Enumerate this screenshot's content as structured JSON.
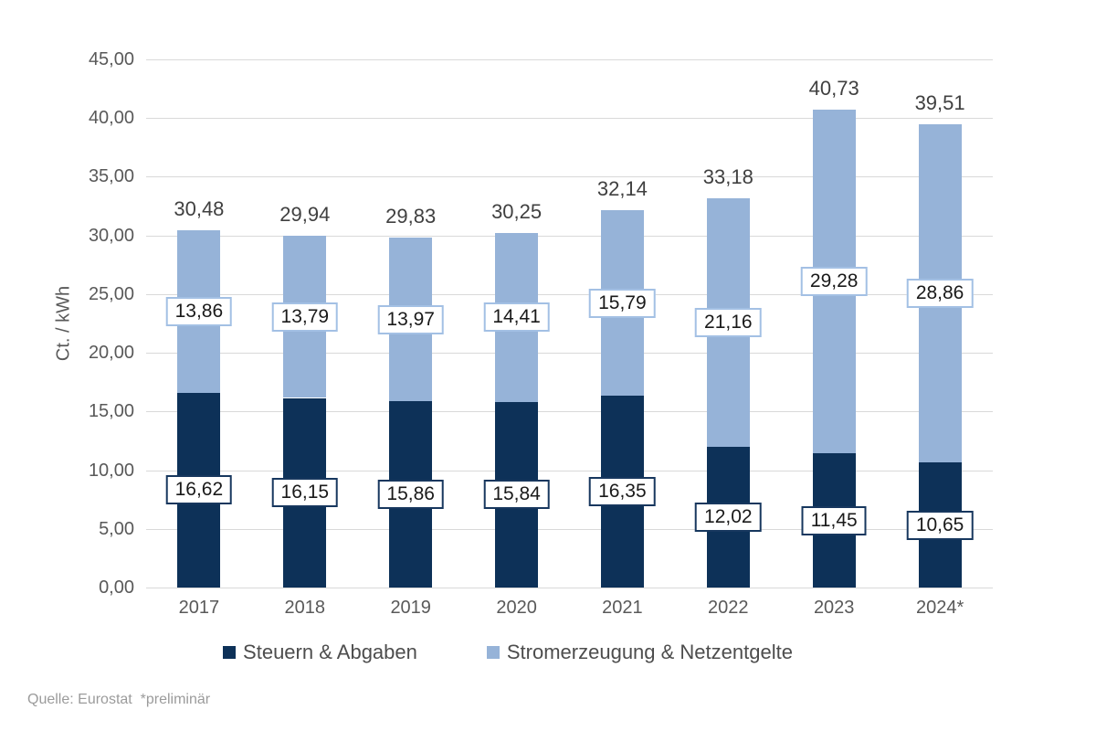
{
  "chart_data": {
    "type": "bar",
    "stacked": true,
    "title": "",
    "ylabel": "Ct. / kWh",
    "ylim": [
      0,
      45
    ],
    "ytick_step": 5,
    "grid": true,
    "legend_position": "bottom",
    "decimal_separator": ",",
    "categories": [
      "2017",
      "2018",
      "2019",
      "2020",
      "2021",
      "2022",
      "2023",
      "2024*"
    ],
    "series": [
      {
        "name": "Steuern & Abgaben",
        "color": "#0D3158",
        "label_border": "#17375E",
        "values": [
          16.62,
          16.15,
          15.86,
          15.84,
          16.35,
          12.02,
          11.45,
          10.65
        ]
      },
      {
        "name": "Stromerzeugung & Netzentgelte",
        "color": "#96B3D8",
        "label_border": "#A3C0E4",
        "values": [
          13.86,
          13.79,
          13.97,
          14.41,
          15.79,
          21.16,
          29.28,
          28.86
        ]
      }
    ],
    "totals": [
      30.48,
      29.94,
      29.83,
      30.25,
      32.14,
      33.18,
      40.73,
      39.51
    ]
  },
  "source_note": "Quelle: Eurostat  *preliminär",
  "colors": {
    "grid": "#D9D9D9",
    "axis_text": "#595959",
    "total_text": "#404040",
    "legend_text": "#4D4D4D",
    "source_text": "#9B9B9B",
    "label_box_bg": "#FFFFFF"
  }
}
